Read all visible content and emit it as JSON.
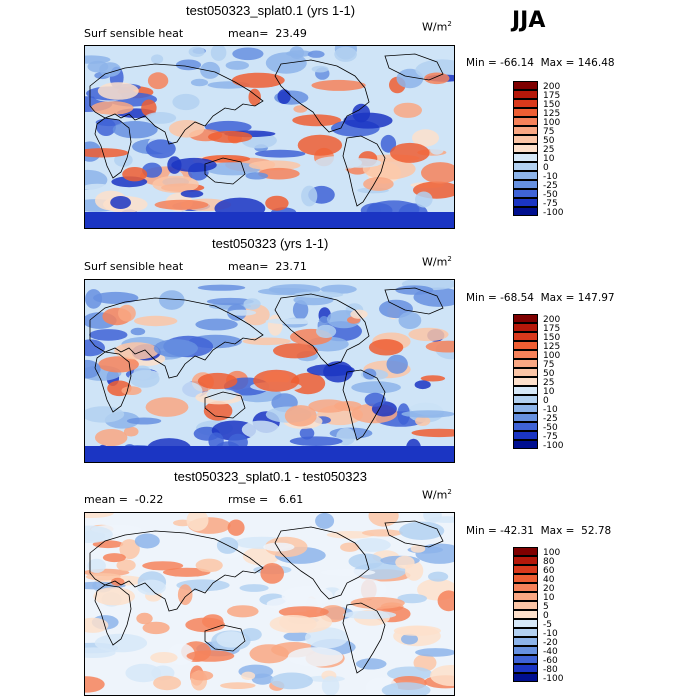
{
  "season": "JJA",
  "panels": [
    {
      "title": "test050323_splat0.1 (yrs 1-1)",
      "left_label": "Surf sensible heat",
      "stat_label": "mean=  23.49",
      "units": "W/m",
      "units_sup": "2",
      "minmax": "Min = -66.14  Max = 146.48",
      "colorbar": {
        "labels": [
          "200",
          "175",
          "150",
          "125",
          "100",
          "75",
          "50",
          "25",
          "10",
          "0",
          "-10",
          "-25",
          "-50",
          "-75",
          "-100"
        ],
        "colors": [
          "#7f0000",
          "#b5180a",
          "#d9391c",
          "#ee5e33",
          "#f6825a",
          "#f9a783",
          "#fbc5a6",
          "#fde0cb",
          "#d6e8f8",
          "#b3d1f1",
          "#8db4ea",
          "#6791e0",
          "#3f63d6",
          "#1b35c3",
          "#000f8f"
        ]
      },
      "map_palette": [
        "#cfe4f7",
        "#b3d1f1",
        "#8db4ea",
        "#6791e0",
        "#3f63d6",
        "#1b35c3",
        "#fde0cb",
        "#fbc5a6",
        "#f9a783",
        "#f6825a",
        "#ee5e33"
      ]
    },
    {
      "title": "test050323 (yrs 1-1)",
      "left_label": "Surf sensible heat",
      "stat_label": "mean=  23.71",
      "units": "W/m",
      "units_sup": "2",
      "minmax": "Min = -68.54  Max = 147.97",
      "colorbar": {
        "labels": [
          "200",
          "175",
          "150",
          "125",
          "100",
          "75",
          "50",
          "25",
          "10",
          "0",
          "-10",
          "-25",
          "-50",
          "-75",
          "-100"
        ],
        "colors": [
          "#7f0000",
          "#b5180a",
          "#d9391c",
          "#ee5e33",
          "#f6825a",
          "#f9a783",
          "#fbc5a6",
          "#fde0cb",
          "#d6e8f8",
          "#b3d1f1",
          "#8db4ea",
          "#6791e0",
          "#3f63d6",
          "#1b35c3",
          "#000f8f"
        ]
      },
      "map_palette": [
        "#cfe4f7",
        "#b3d1f1",
        "#8db4ea",
        "#6791e0",
        "#3f63d6",
        "#1b35c3",
        "#fde0cb",
        "#fbc5a6",
        "#f9a783",
        "#f6825a",
        "#ee5e33"
      ]
    },
    {
      "title": "test050323_splat0.1 - test050323",
      "left_label": "mean =  -0.22",
      "stat_label": "rmse =   6.61",
      "units": "W/m",
      "units_sup": "2",
      "minmax": "Min = -42.31  Max =  52.78",
      "colorbar": {
        "labels": [
          "100",
          "80",
          "60",
          "40",
          "20",
          "10",
          "5",
          "0",
          "-5",
          "-10",
          "-20",
          "-40",
          "-60",
          "-80",
          "-100"
        ],
        "colors": [
          "#7f0000",
          "#b5180a",
          "#d9391c",
          "#ee5e33",
          "#f6825a",
          "#f9a783",
          "#fbc5a6",
          "#fde0cb",
          "#d6e8f8",
          "#b3d1f1",
          "#8db4ea",
          "#6791e0",
          "#3f63d6",
          "#1b35c3",
          "#000f8f"
        ]
      },
      "map_palette": [
        "#eef4fb",
        "#d6e8f8",
        "#b3d1f1",
        "#8db4ea",
        "#fde0cb",
        "#fbc5a6",
        "#f9a783",
        "#f6825a"
      ]
    }
  ]
}
